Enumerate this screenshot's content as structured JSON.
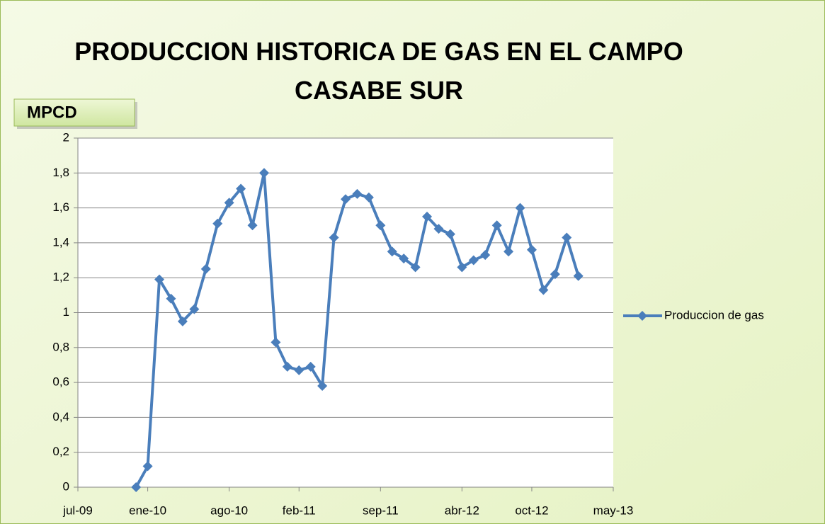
{
  "chart_data": {
    "type": "line",
    "title": "PRODUCCION HISTORICA DE GAS EN EL CAMPO CASABE SUR",
    "y_label": "MPCD",
    "x": [
      "2009-12",
      "2010-01",
      "2010-02",
      "2010-03",
      "2010-04",
      "2010-05",
      "2010-06",
      "2010-07",
      "2010-08",
      "2010-09",
      "2010-10",
      "2010-11",
      "2010-12",
      "2011-01",
      "2011-02",
      "2011-03",
      "2011-04",
      "2011-05",
      "2011-06",
      "2011-07",
      "2011-08",
      "2011-09",
      "2011-10",
      "2011-11",
      "2011-12",
      "2012-01",
      "2012-02",
      "2012-03",
      "2012-04",
      "2012-05",
      "2012-06",
      "2012-07",
      "2012-08",
      "2012-09",
      "2012-10",
      "2012-11",
      "2012-12",
      "2013-01",
      "2013-02"
    ],
    "series": [
      {
        "name": "Produccion de gas",
        "color": "#4a7ebb",
        "values": [
          0,
          0.12,
          1.19,
          1.08,
          0.95,
          1.02,
          1.25,
          1.51,
          1.63,
          1.71,
          1.5,
          1.8,
          0.83,
          0.69,
          0.67,
          0.69,
          0.58,
          1.43,
          1.65,
          1.68,
          1.66,
          1.5,
          1.35,
          1.31,
          1.26,
          1.55,
          1.48,
          1.45,
          1.26,
          1.3,
          1.33,
          1.5,
          1.35,
          1.6,
          1.36,
          1.13,
          1.22,
          1.43,
          1.21
        ]
      }
    ],
    "xlim": [
      "2009-07",
      "2013-05"
    ],
    "xticks": [
      {
        "value": "2009-07",
        "label": "jul-09"
      },
      {
        "value": "2010-01",
        "label": "ene-10"
      },
      {
        "value": "2010-08",
        "label": "ago-10"
      },
      {
        "value": "2011-02",
        "label": "feb-11"
      },
      {
        "value": "2011-09",
        "label": "sep-11"
      },
      {
        "value": "2012-04",
        "label": "abr-12"
      },
      {
        "value": "2012-10",
        "label": "oct-12"
      },
      {
        "value": "2013-05",
        "label": "may-13"
      }
    ],
    "ylim": [
      0,
      2
    ],
    "yticks": [
      0,
      {
        "value": 0.2,
        "label": "0,2"
      },
      {
        "value": 0.4,
        "label": "0,4"
      },
      {
        "value": 0.6,
        "label": "0,6"
      },
      {
        "value": 0.8,
        "label": "0,8"
      },
      1,
      {
        "value": 1.2,
        "label": "1,2"
      },
      {
        "value": 1.4,
        "label": "1,4"
      },
      {
        "value": 1.6,
        "label": "1,6"
      },
      {
        "value": 1.8,
        "label": "1,8"
      },
      2
    ],
    "grid": true,
    "legend": "right"
  }
}
